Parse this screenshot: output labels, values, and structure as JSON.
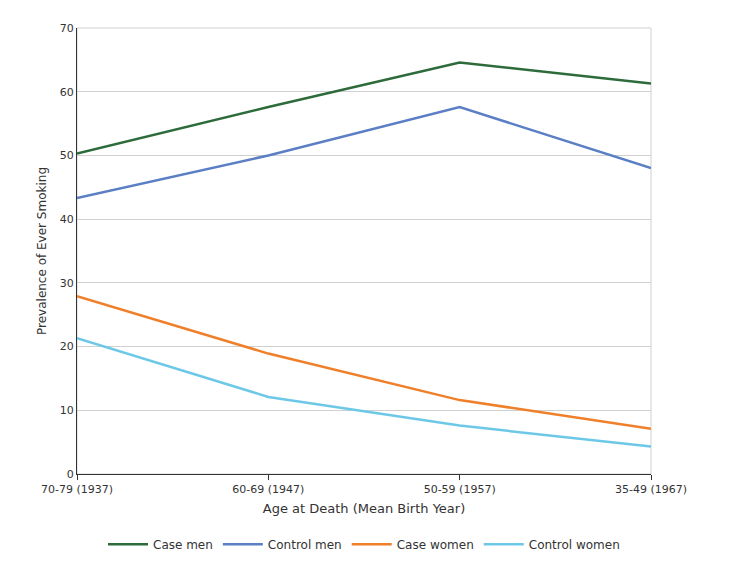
{
  "chart_data": {
    "type": "line",
    "x_label": "Age at Death (Mean Birth Year)",
    "y_label": "Prevalence of Ever Smoking",
    "categories": [
      "70-79 (1937)",
      "60-69 (1947)",
      "50-59 (1957)",
      "35-49 (1967)"
    ],
    "series": [
      {
        "name": "Case men",
        "color": "#2e6b3a",
        "values": [
          50.3,
          57.6,
          64.6,
          61.3
        ]
      },
      {
        "name": "Control men",
        "color": "#5b7fc4",
        "values": [
          43.3,
          50.0,
          57.6,
          48.0
        ]
      },
      {
        "name": "Case women",
        "color": "#f07f2a",
        "values": [
          27.9,
          18.9,
          11.6,
          7.1
        ]
      },
      {
        "name": "Control women",
        "color": "#6dc8e8",
        "values": [
          21.3,
          12.1,
          7.6,
          4.3
        ]
      }
    ],
    "ylim": [
      0,
      70
    ],
    "yticks": [
      0,
      10,
      20,
      30,
      40,
      50,
      60,
      70
    ],
    "grid": true,
    "legend": "bottom"
  }
}
